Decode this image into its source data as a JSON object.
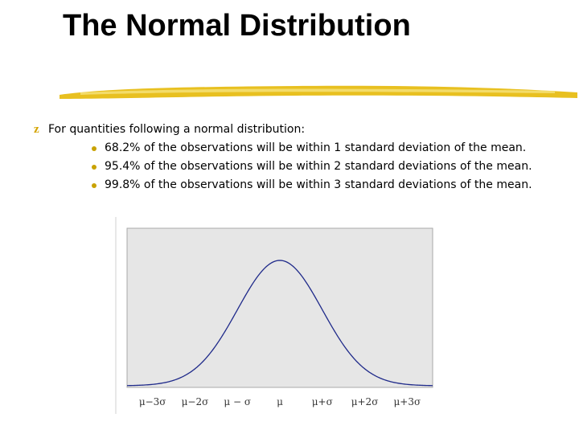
{
  "slide": {
    "title": "The Normal Distribution"
  },
  "bullets": {
    "main": "For quantities following a normal distribution:",
    "items": [
      "68.2% of the observations will be within 1 standard deviation of the mean.",
      "95.4% of the observations will be within 2 standard deviations of the mean.",
      "99.8% of the observations will be within 3 standard deviations of the mean."
    ]
  },
  "colors": {
    "accent_yellow": "#e8c020",
    "curve": "#1f2a8a",
    "plot_bg": "#e6e6e6"
  },
  "chart_data": {
    "type": "line",
    "title": "",
    "xlabel": "",
    "ylabel": "",
    "curve": "normal density",
    "mean": 0,
    "sd": 1,
    "xlim": [
      -3.6,
      3.6
    ],
    "ticks": [
      -3,
      -2,
      -1,
      0,
      1,
      2,
      3
    ],
    "tick_labels": [
      "μ−3σ",
      "μ−2σ",
      "μ − σ",
      "μ",
      "μ+σ",
      "μ+2σ",
      "μ+3σ"
    ],
    "grid": false,
    "legend": "none"
  }
}
